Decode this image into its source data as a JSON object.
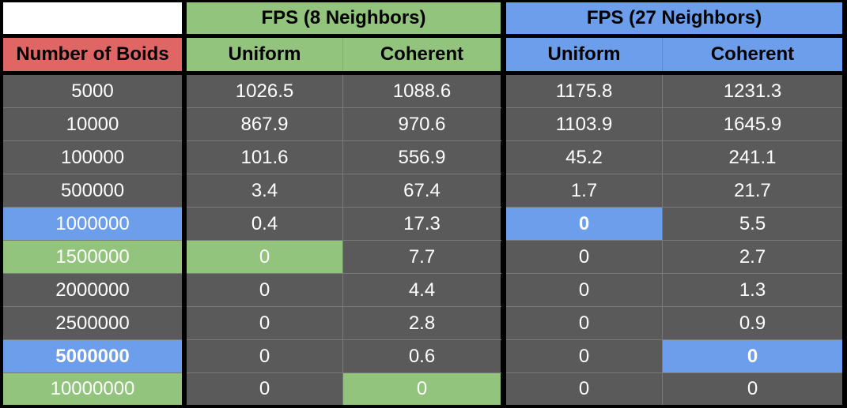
{
  "chart_data": {
    "type": "table",
    "colors": {
      "red_header": "#e06666",
      "green_group": "#93c47d",
      "blue_group": "#6d9eeb",
      "body_cell": "#5a5a5a",
      "blank_cell": "#ffffff",
      "text_light": "#ffffff",
      "text_dark": "#000000"
    },
    "group_headers": [
      "FPS (8 Neighbors)",
      "FPS (27 Neighbors)"
    ],
    "row_header_label": "Number of Boids",
    "column_labels": [
      "Uniform",
      "Coherent",
      "Uniform",
      "Coherent"
    ],
    "rows": [
      {
        "boids": "5000",
        "values": [
          "1026.5",
          "1088.6",
          "1175.8",
          "1231.3"
        ]
      },
      {
        "boids": "10000",
        "values": [
          "867.9",
          "970.6",
          "1103.9",
          "1645.9"
        ]
      },
      {
        "boids": "100000",
        "values": [
          "101.6",
          "556.9",
          "45.2",
          "241.1"
        ]
      },
      {
        "boids": "500000",
        "values": [
          "3.4",
          "67.4",
          "1.7",
          "21.7"
        ]
      },
      {
        "boids": "1000000",
        "values": [
          "0.4",
          "17.3",
          "0",
          "5.5"
        ]
      },
      {
        "boids": "1500000",
        "values": [
          "0",
          "7.7",
          "0",
          "2.7"
        ]
      },
      {
        "boids": "2000000",
        "values": [
          "0",
          "4.4",
          "0",
          "1.3"
        ]
      },
      {
        "boids": "2500000",
        "values": [
          "0",
          "2.8",
          "0",
          "0.9"
        ]
      },
      {
        "boids": "5000000",
        "values": [
          "0",
          "0.6",
          "0",
          "0"
        ]
      },
      {
        "boids": "10000000",
        "values": [
          "0",
          "0",
          "0",
          "0"
        ]
      }
    ],
    "highlights": [
      {
        "row": 4,
        "col": 0,
        "color": "blue",
        "bold": false
      },
      {
        "row": 4,
        "col": 3,
        "color": "blue",
        "bold": true
      },
      {
        "row": 5,
        "col": 0,
        "color": "green",
        "bold": false
      },
      {
        "row": 5,
        "col": 1,
        "color": "green",
        "bold": false
      },
      {
        "row": 8,
        "col": 0,
        "color": "blue",
        "bold": true
      },
      {
        "row": 8,
        "col": 4,
        "color": "blue",
        "bold": true
      },
      {
        "row": 9,
        "col": 0,
        "color": "green",
        "bold": false
      },
      {
        "row": 9,
        "col": 2,
        "color": "green",
        "bold": false
      }
    ]
  }
}
